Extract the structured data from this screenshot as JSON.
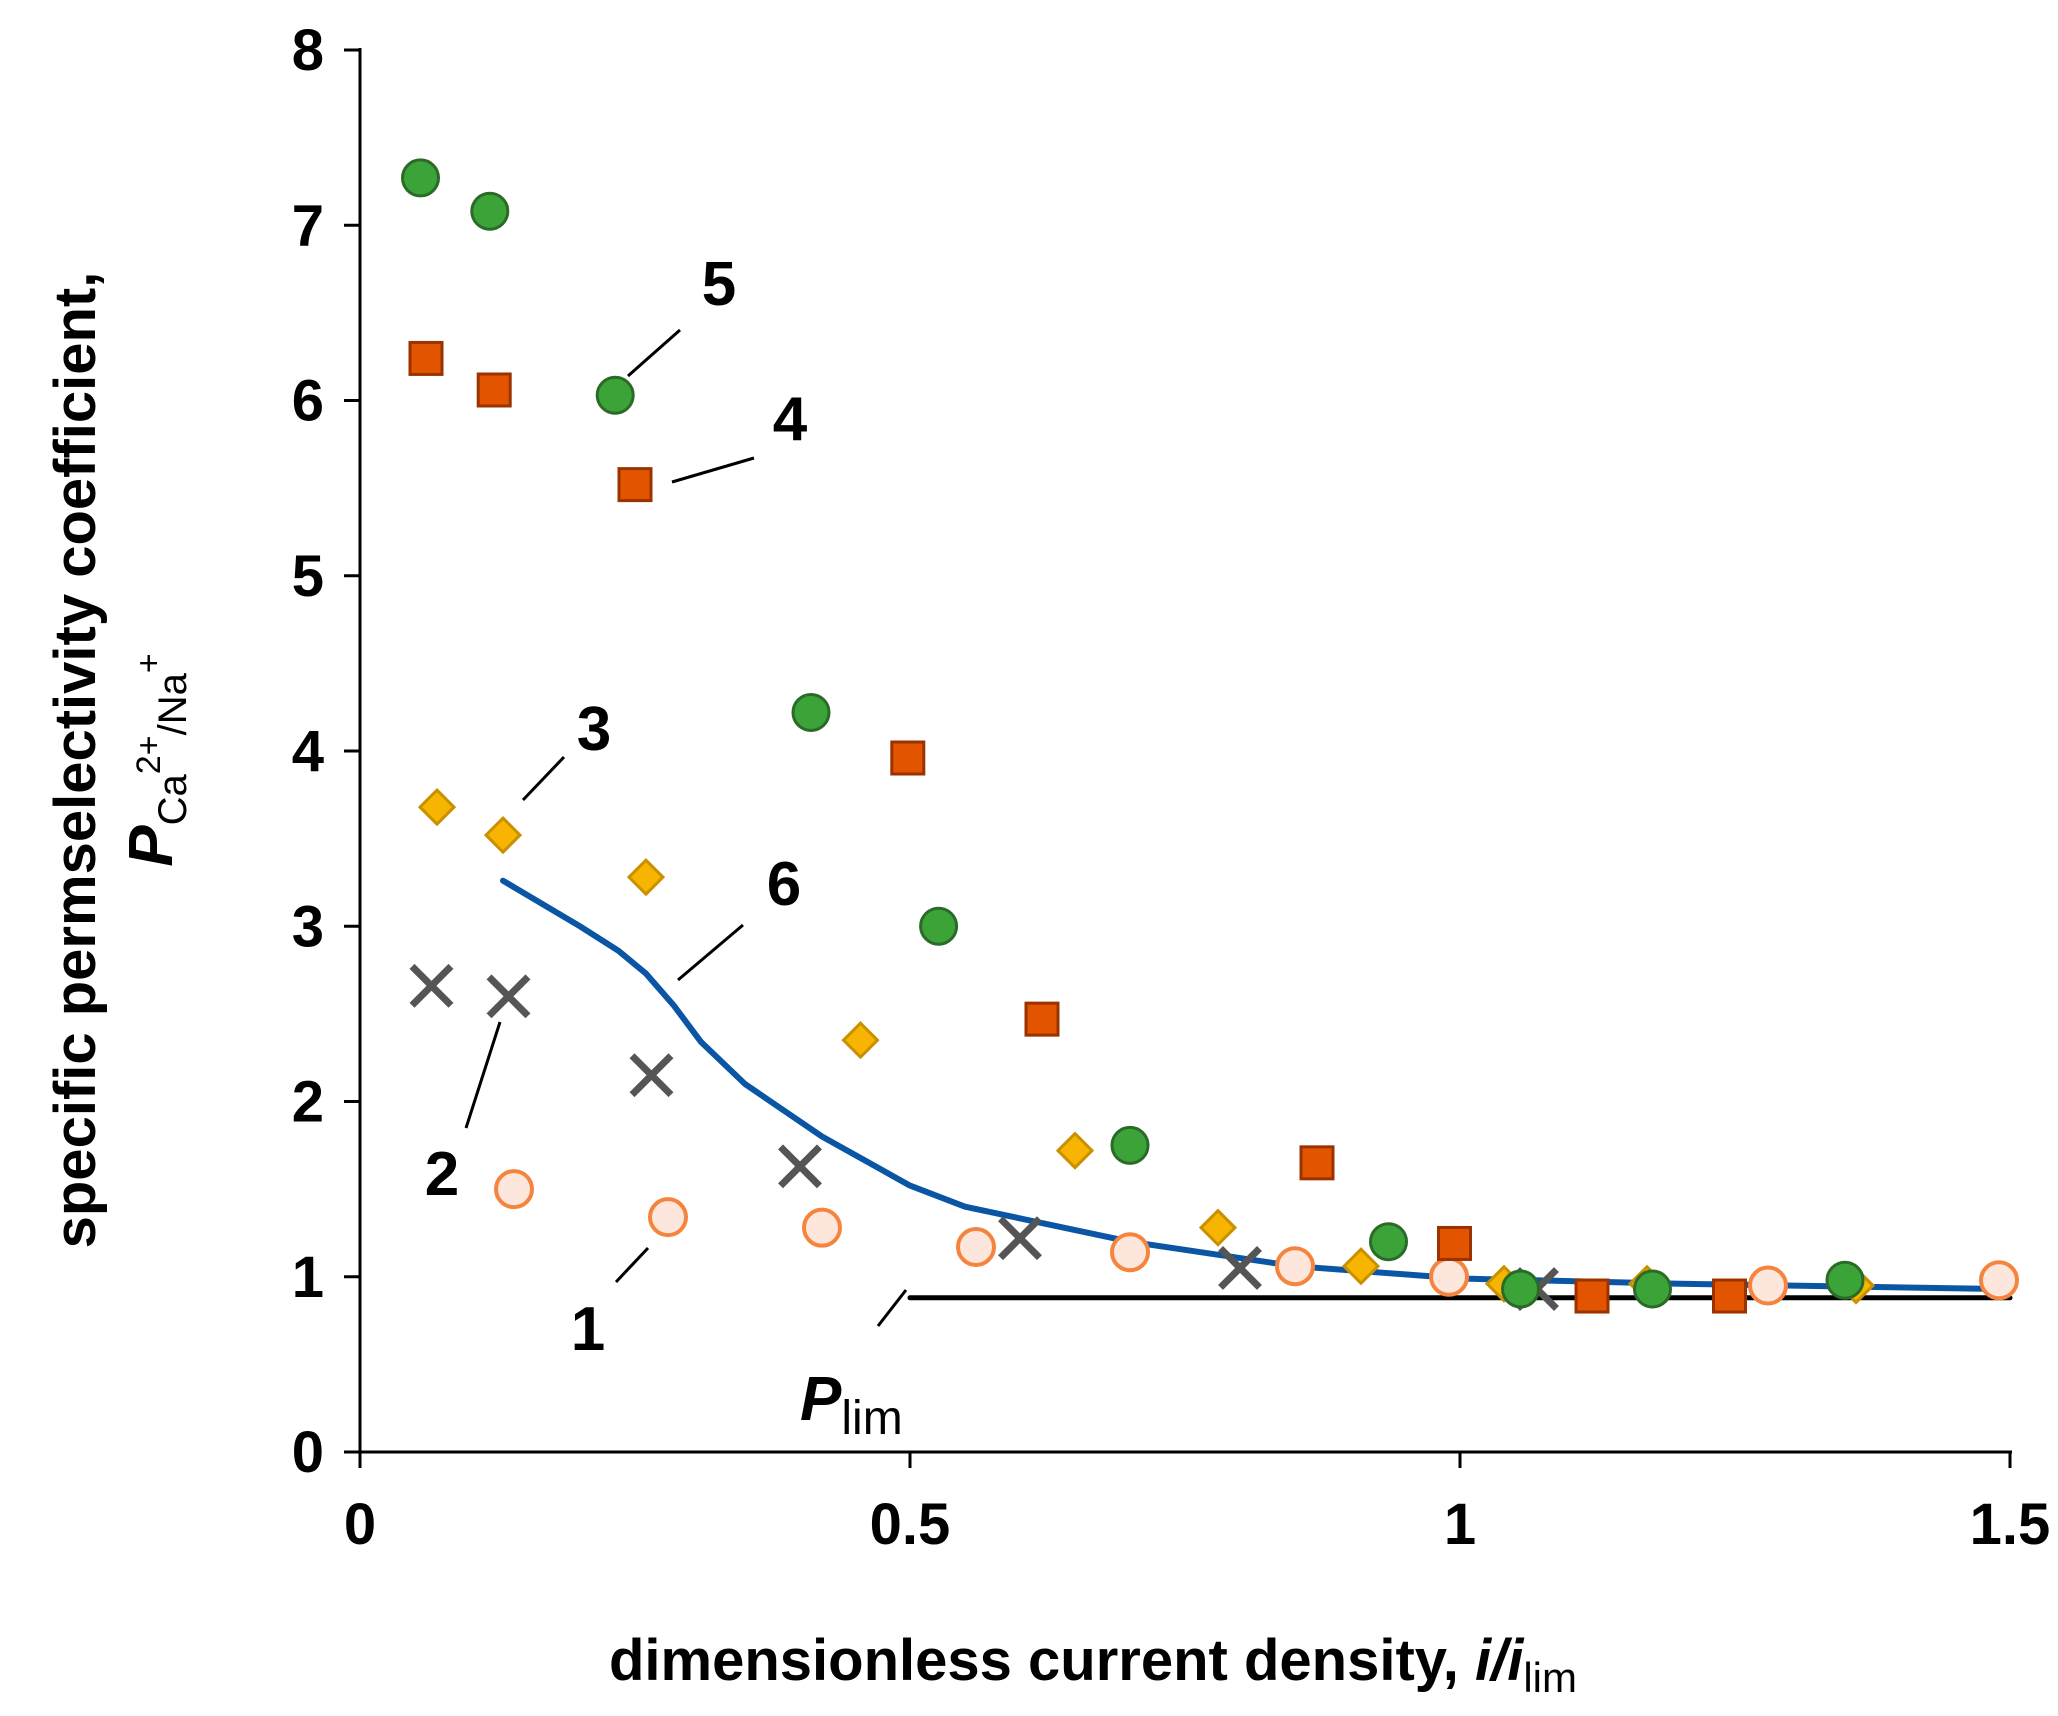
{
  "chart_data": {
    "type": "scatter",
    "title": "",
    "xlabel": {
      "main": "dimensionless current density, ",
      "var_i": "i",
      "slash": "/",
      "var_i2": "i",
      "sub": "lim"
    },
    "ylabel": {
      "line1": "specific permselectivity coefficient,",
      "var_p": "P",
      "sub_ca": "Ca",
      "sup_ca": "2+",
      "sub_slash_na": "/Na",
      "sup_na": "+"
    },
    "xlim": [
      0,
      1.5
    ],
    "ylim": [
      0,
      8
    ],
    "x_ticks": [
      "0",
      "0.5",
      "1",
      "1.5"
    ],
    "y_ticks": [
      "0",
      "1",
      "2",
      "3",
      "4",
      "5",
      "6",
      "7",
      "8"
    ],
    "grid": false,
    "colors": {
      "s1_fill": "#fde6dc",
      "s1_stroke": "#f5843f",
      "s2": "#555555",
      "s3_fill": "#f7b400",
      "s3_stroke": "#c99100",
      "s4_fill": "#e35400",
      "s4_stroke": "#9b3300",
      "s5_fill": "#3ca339",
      "s5_stroke": "#2a6b28",
      "s6": "#0b56a4",
      "plim": "#000000",
      "axis": "#000000",
      "leader": "#000000"
    },
    "series": [
      {
        "name": "1",
        "marker": "circle-open",
        "x": [
          0.14,
          0.28,
          0.42,
          0.56,
          0.7,
          0.85,
          0.99,
          1.28,
          1.49
        ],
        "y": [
          1.5,
          1.34,
          1.28,
          1.17,
          1.14,
          1.06,
          1.0,
          0.95,
          0.98
        ]
      },
      {
        "name": "2",
        "marker": "cross",
        "x": [
          0.065,
          0.135,
          0.265,
          0.4,
          0.6,
          0.8,
          1.07
        ],
        "y": [
          2.66,
          2.6,
          2.15,
          1.63,
          1.22,
          1.05,
          0.93
        ]
      },
      {
        "name": "3",
        "marker": "diamond",
        "x": [
          0.07,
          0.13,
          0.26,
          0.455,
          0.65,
          0.78,
          0.91,
          1.04,
          1.17,
          1.36
        ],
        "y": [
          3.68,
          3.52,
          3.28,
          2.35,
          1.72,
          1.28,
          1.06,
          0.96,
          0.96,
          0.95
        ]
      },
      {
        "name": "4",
        "marker": "square",
        "x": [
          0.06,
          0.122,
          0.25,
          0.498,
          0.62,
          0.87,
          0.995,
          1.12,
          1.245
        ],
        "y": [
          6.24,
          6.06,
          5.52,
          3.96,
          2.47,
          1.65,
          1.19,
          0.89,
          0.89
        ]
      },
      {
        "name": "5",
        "marker": "circle-filled",
        "x": [
          0.055,
          0.118,
          0.232,
          0.41,
          0.526,
          0.7,
          0.935,
          1.055,
          1.175,
          1.35
        ],
        "y": [
          7.27,
          7.08,
          6.03,
          4.22,
          3.0,
          1.75,
          1.2,
          0.93,
          0.93,
          0.98
        ]
      },
      {
        "name": "6",
        "marker": "line",
        "x": [
          0.13,
          0.2,
          0.235,
          0.26,
          0.285,
          0.31,
          0.35,
          0.42,
          0.5,
          0.55,
          0.7,
          0.85,
          1.0,
          1.2,
          1.49
        ],
        "y": [
          3.26,
          3.0,
          2.86,
          2.73,
          2.55,
          2.34,
          2.1,
          1.8,
          1.52,
          1.4,
          1.2,
          1.06,
          0.99,
          0.96,
          0.93
        ]
      },
      {
        "name": "Plim",
        "marker": "line",
        "x": [
          0.5,
          1.5
        ],
        "y": [
          0.88,
          0.88
        ]
      }
    ],
    "annotations": [
      {
        "text": "1",
        "target_series": "1",
        "x": 0.3,
        "y": 1.0
      },
      {
        "text": "2",
        "target_series": "2",
        "x": 0.1,
        "y": 1.7
      },
      {
        "text": "3",
        "target_series": "3",
        "x": 0.2,
        "y": 4.0
      },
      {
        "text": "4",
        "target_series": "4",
        "x": 0.38,
        "y": 5.7
      },
      {
        "text": "5",
        "target_series": "5",
        "x": 0.33,
        "y": 6.7
      },
      {
        "text": "6",
        "target_series": "6",
        "x": 0.4,
        "y": 3.2
      }
    ],
    "plim_label": {
      "var": "P",
      "sub": "lim"
    }
  }
}
